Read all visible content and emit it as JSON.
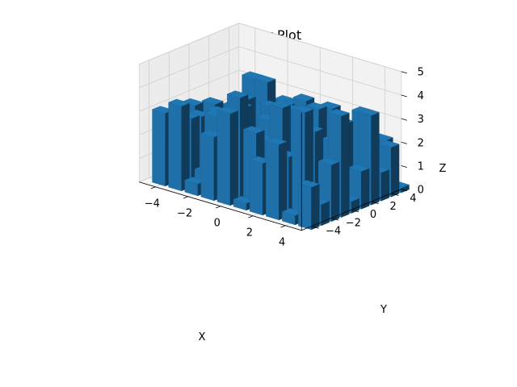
{
  "chart_data": {
    "type": "bar3d",
    "title": "3D Bar Plot",
    "xlabel": "X",
    "ylabel": "Y",
    "zlabel": "Z",
    "xlim": [
      -5,
      5
    ],
    "ylim": [
      -5,
      5
    ],
    "zlim": [
      0,
      5
    ],
    "x_ticks": [
      "−4",
      "−2",
      "0",
      "2",
      "4"
    ],
    "y_ticks": [
      "−4",
      "−2",
      "0",
      "2",
      "4"
    ],
    "z_ticks": [
      "0",
      "1",
      "2",
      "3",
      "4",
      "5"
    ],
    "bar_color": "#1f77b4",
    "bar_dx": 0.8,
    "bar_dy": 0.8,
    "x": [
      -4.5,
      -3.5,
      -2.5,
      -1.5,
      -0.5,
      0.5,
      1.5,
      2.5,
      3.5,
      4.5
    ],
    "y": [
      -4.5,
      -3.5,
      -2.5,
      -1.5,
      -0.5,
      0.5,
      1.5,
      2.5,
      3.5,
      4.5
    ],
    "heights": [
      [
        3.1,
        3.6,
        0.5,
        2.7,
        3.9,
        0.3,
        2.2,
        3.2,
        0.4,
        1.8
      ],
      [
        1.4,
        2.9,
        0.8,
        1.7,
        4.4,
        3.1,
        0.6,
        2.5,
        4.6,
        0.9
      ],
      [
        0.6,
        2.8,
        3.0,
        0.7,
        1.9,
        2.6,
        4.2,
        1.1,
        3.6,
        2.4
      ],
      [
        2.9,
        0.4,
        1.6,
        3.4,
        2.2,
        0.8,
        3.9,
        2.0,
        1.2,
        4.3
      ],
      [
        0.2,
        2.6,
        0.9,
        1.4,
        2.9,
        3.7,
        1.0,
        4.0,
        2.8,
        0.5
      ],
      [
        2.6,
        1.2,
        3.2,
        0.6,
        1.8,
        2.4,
        0.7,
        3.1,
        3.4,
        1.6
      ],
      [
        0.3,
        2.2,
        0.5,
        2.9,
        1.1,
        3.6,
        2.7,
        1.9,
        0.8,
        3.8
      ],
      [
        2.1,
        0.6,
        3.6,
        1.3,
        2.5,
        0.9,
        3.3,
        2.1,
        3.5,
        1.2
      ],
      [
        0.4,
        1.5,
        0.3,
        2.6,
        1.4,
        2.0,
        0.8,
        2.4,
        1.7,
        2.1
      ],
      [
        3.0,
        1.8,
        2.4,
        0.9,
        1.7,
        1.0,
        2.2,
        1.6,
        2.0,
        0.2
      ]
    ]
  }
}
